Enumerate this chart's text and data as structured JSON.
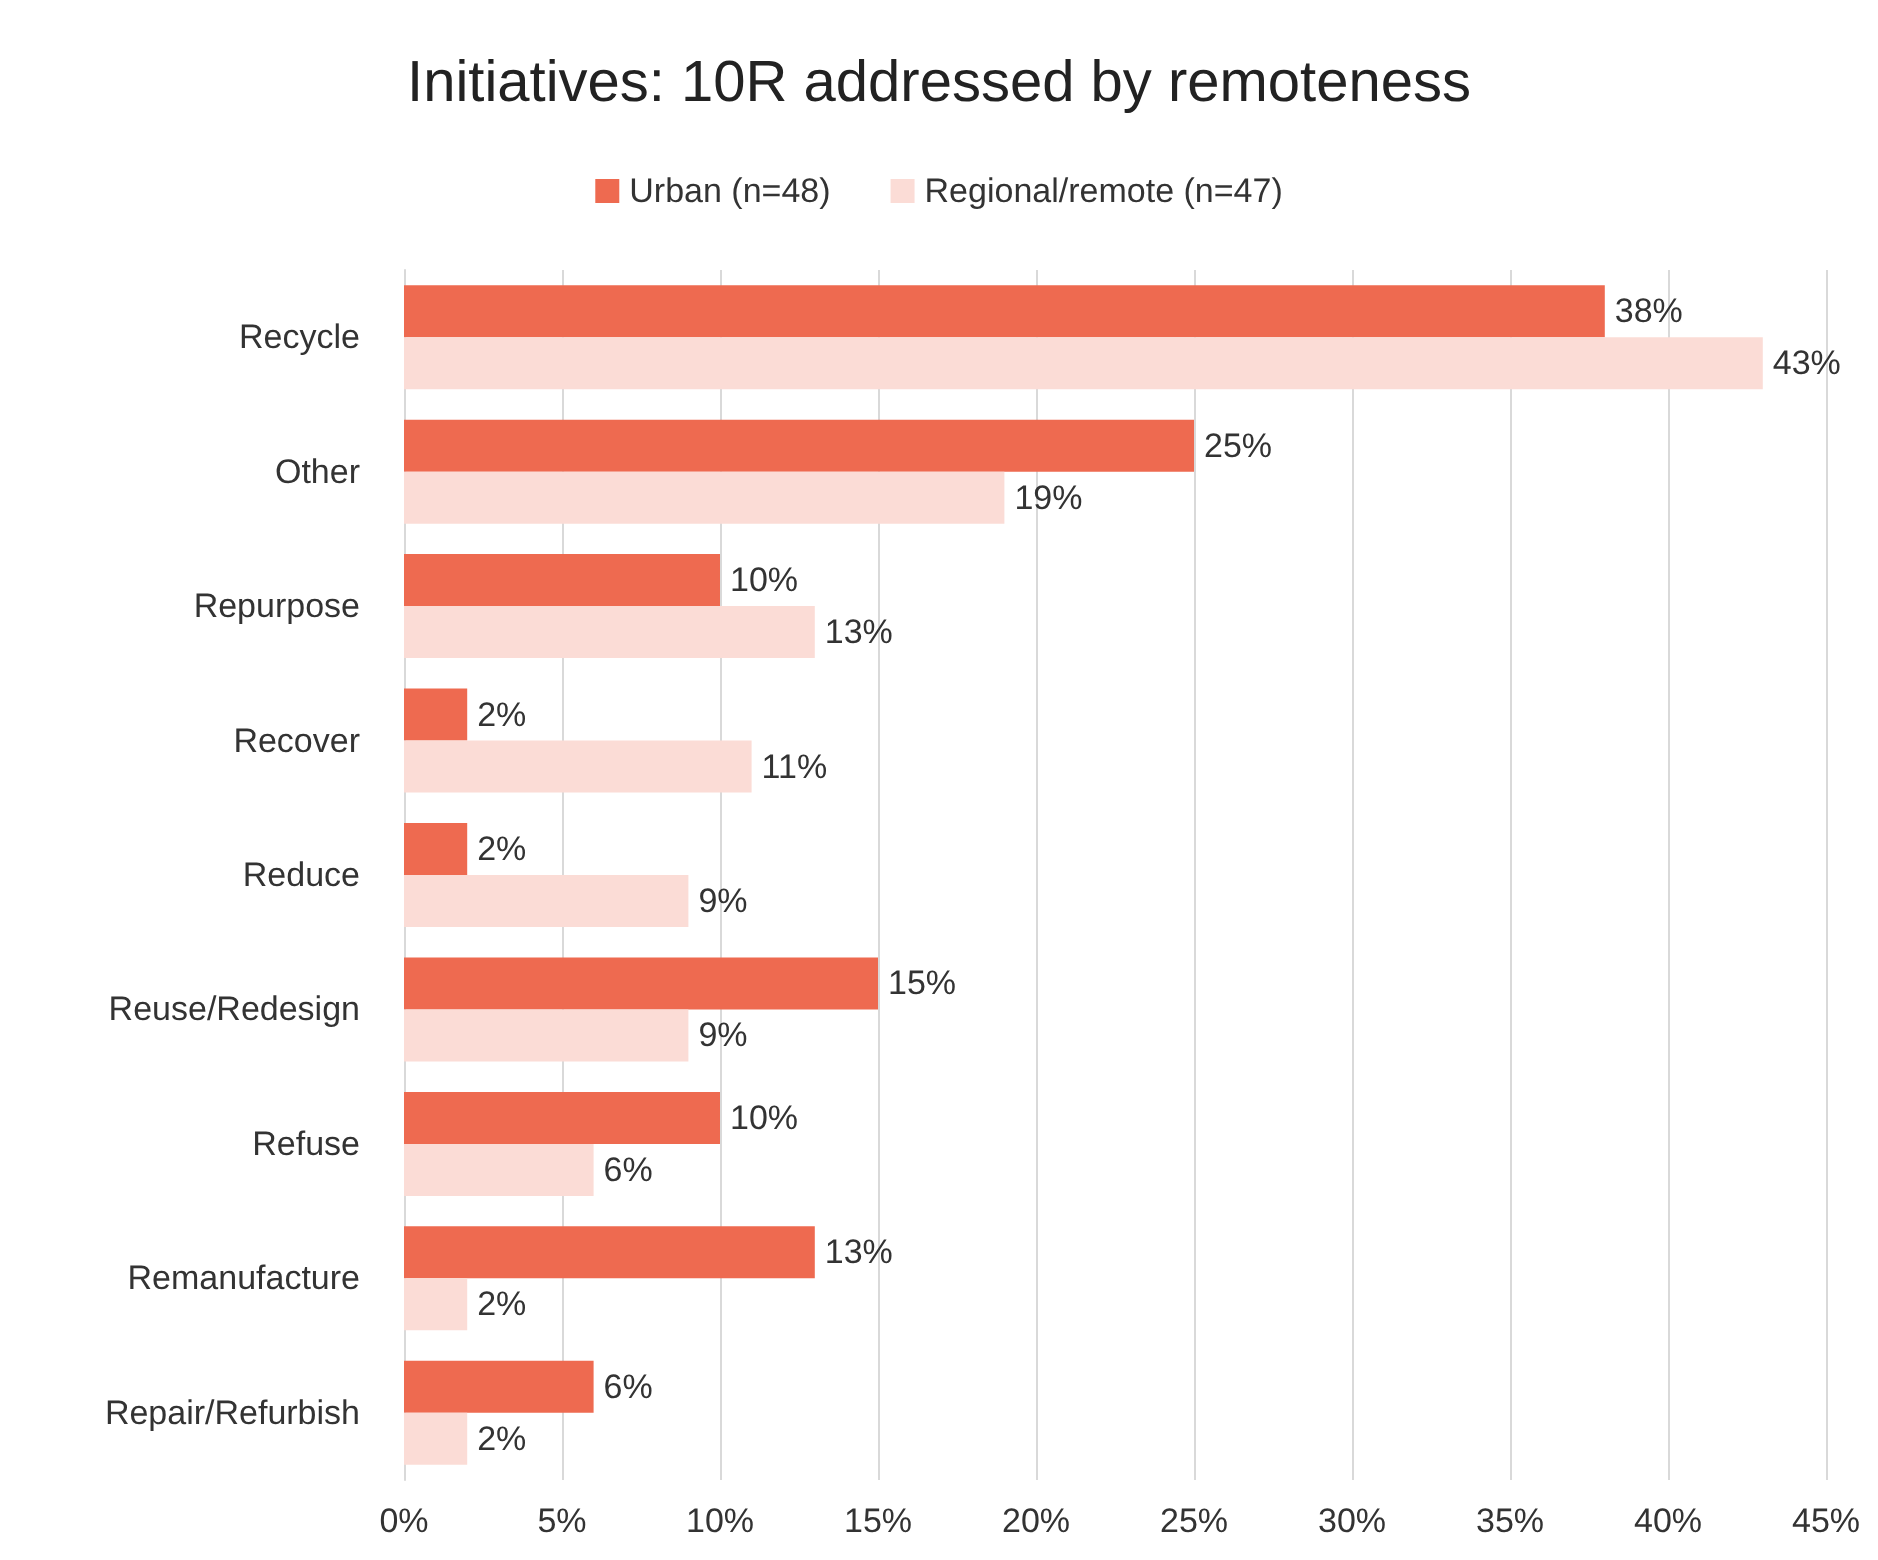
{
  "chart_data": {
    "type": "bar",
    "orientation": "horizontal",
    "title": "Initiatives: 10R addressed by remoteness",
    "categories": [
      "Recycle",
      "Other",
      "Repurpose",
      "Recover",
      "Reduce",
      "Reuse/Redesign",
      "Refuse",
      "Remanufacture",
      "Repair/Refurbish"
    ],
    "series": [
      {
        "name": "Urban (n=48)",
        "color": "#ee6a50",
        "values": [
          38,
          25,
          10,
          2,
          2,
          15,
          10,
          13,
          6
        ],
        "value_labels": [
          "38%",
          "25%",
          "10%",
          "2%",
          "2%",
          "15%",
          "10%",
          "13%",
          "6%"
        ]
      },
      {
        "name": "Regional/remote (n=47)",
        "color": "#fbdcd6",
        "values": [
          43,
          19,
          13,
          11,
          9,
          9,
          6,
          2,
          2
        ],
        "value_labels": [
          "43%",
          "19%",
          "13%",
          "11%",
          "9%",
          "9%",
          "6%",
          "2%",
          "2%"
        ]
      }
    ],
    "xlim": [
      0,
      45
    ],
    "xticks": [
      {
        "value": 0,
        "label": "0%"
      },
      {
        "value": 5,
        "label": "5%"
      },
      {
        "value": 10,
        "label": "10%"
      },
      {
        "value": 15,
        "label": "15%"
      },
      {
        "value": 20,
        "label": "20%"
      },
      {
        "value": 25,
        "label": "25%"
      },
      {
        "value": 30,
        "label": "30%"
      },
      {
        "value": 35,
        "label": "35%"
      },
      {
        "value": 40,
        "label": "40%"
      },
      {
        "value": 45,
        "label": "45%"
      }
    ],
    "grid": "x",
    "legend": "top"
  }
}
